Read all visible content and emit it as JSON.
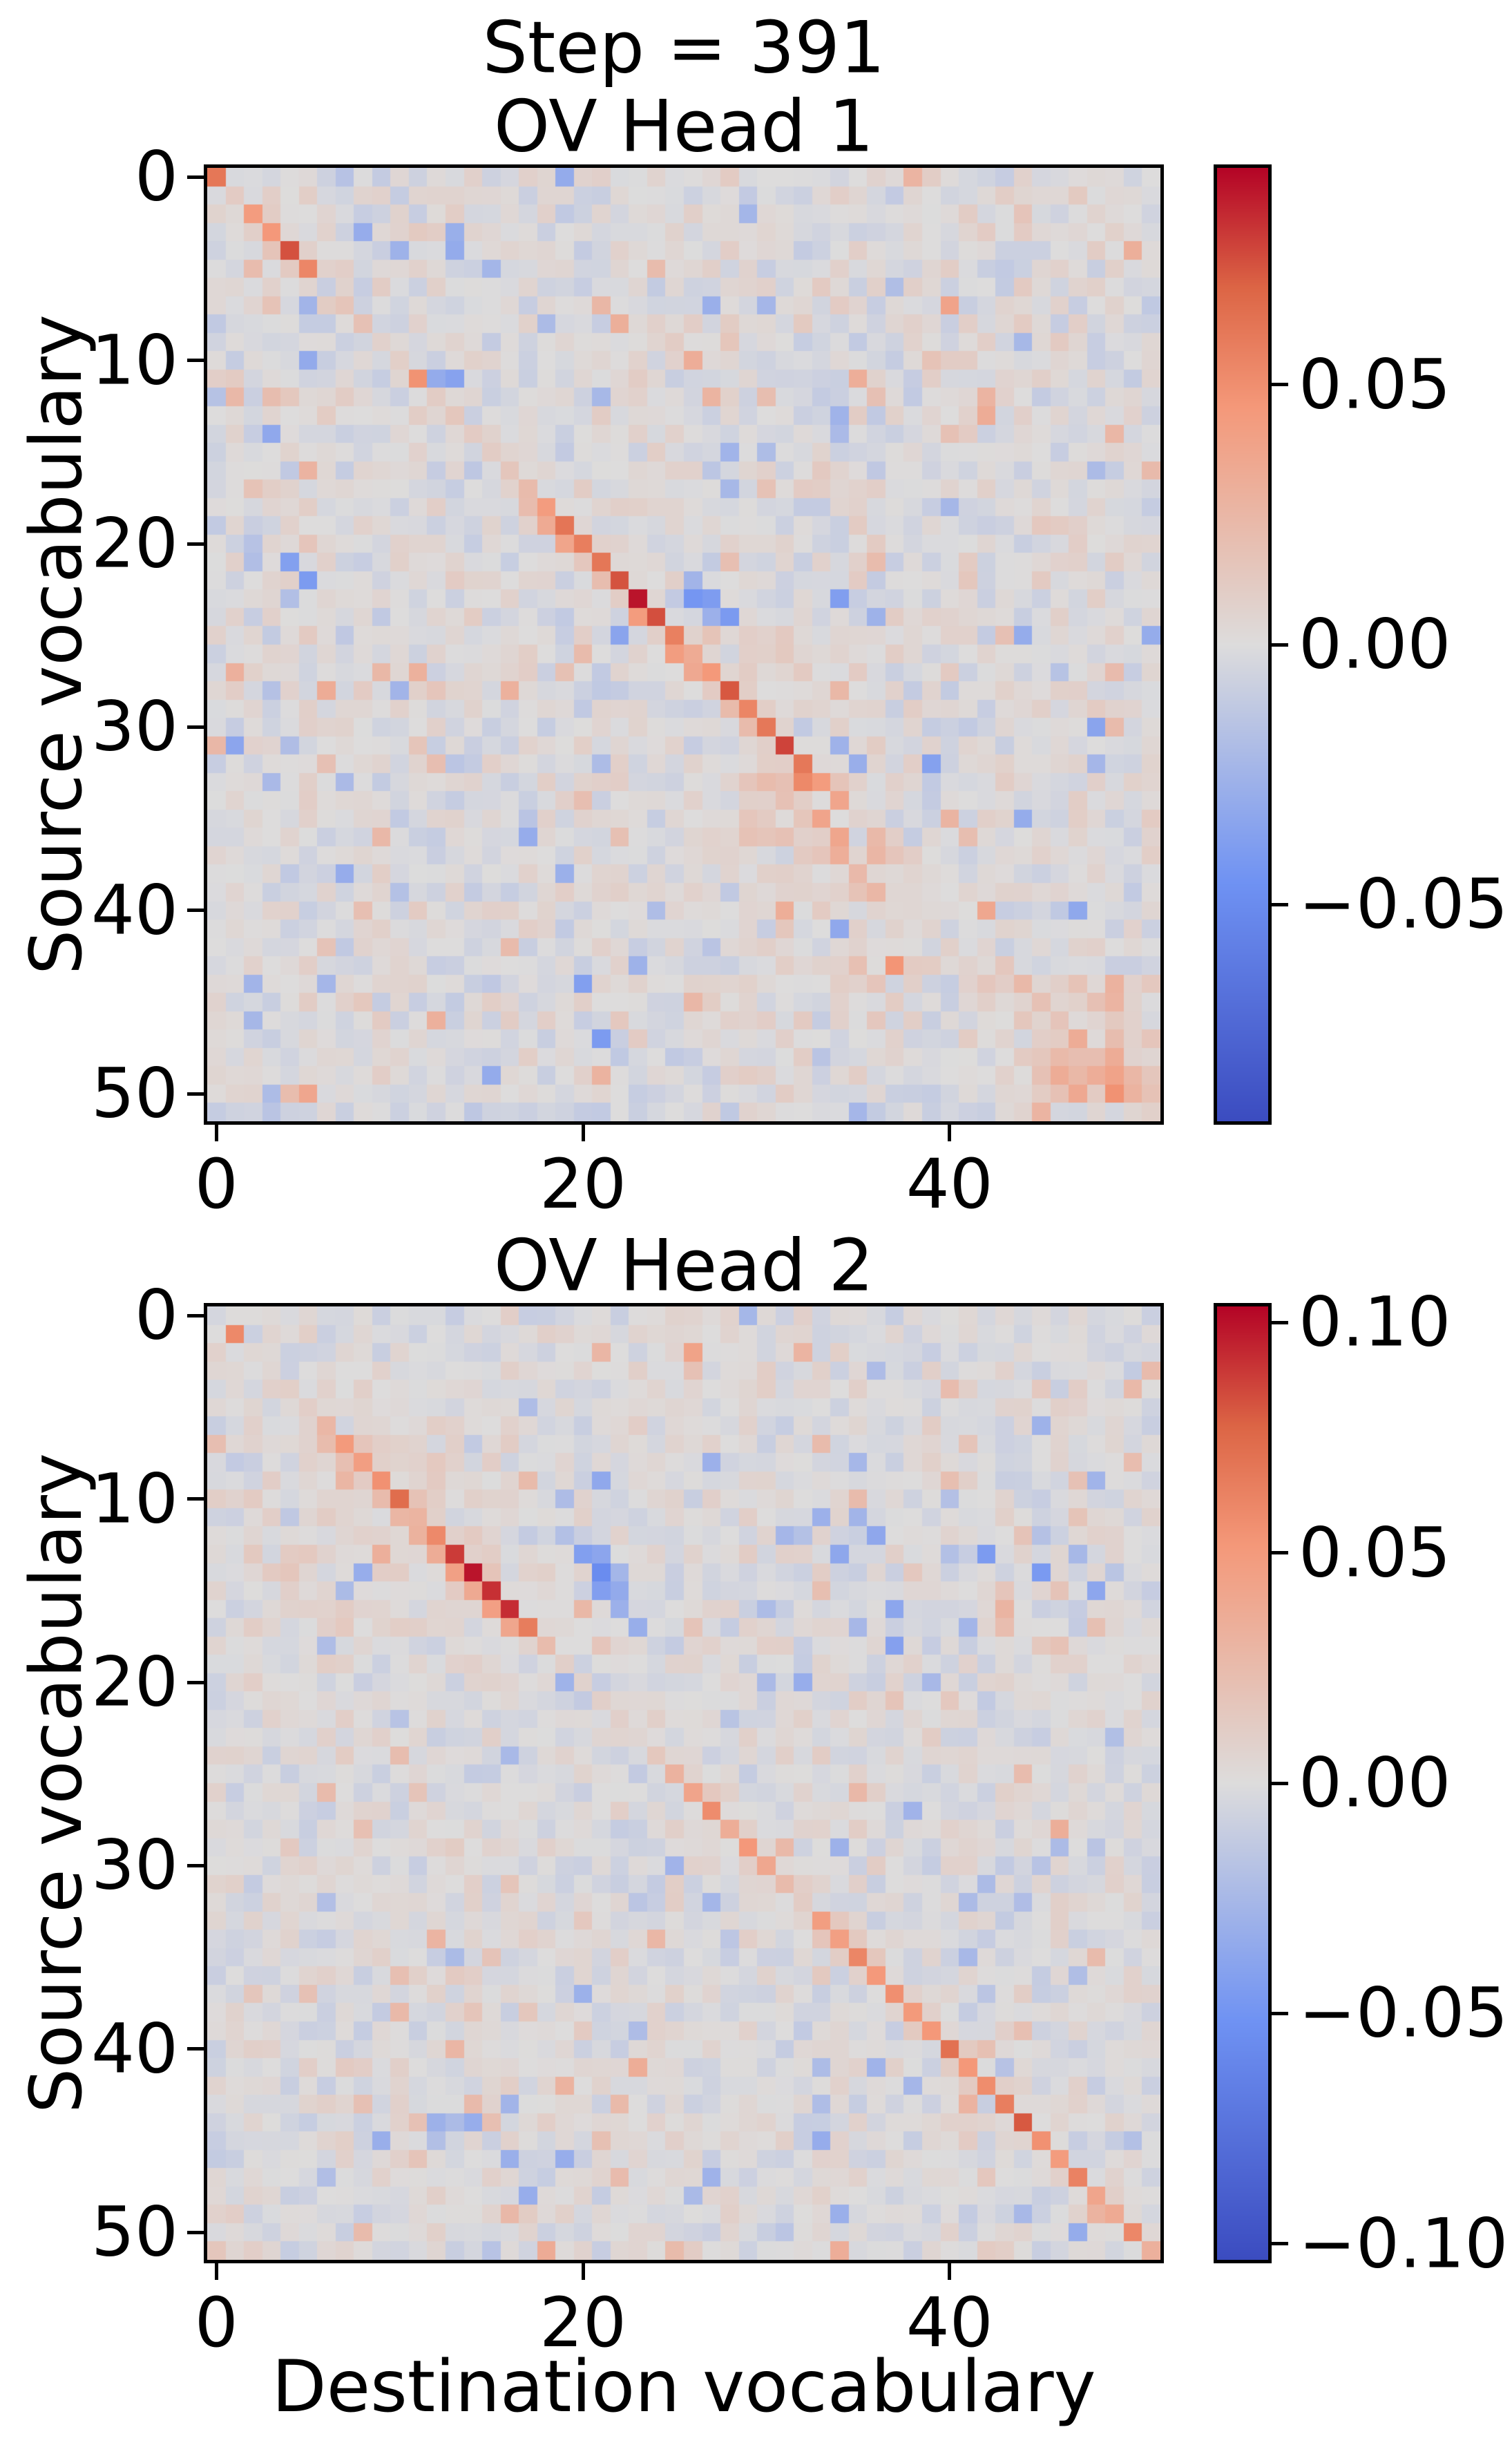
{
  "suptitle": "Step = 391",
  "axis_labels": {
    "y": "Source vocabulary",
    "x": "Destination vocabulary"
  },
  "chart_data": [
    {
      "type": "heatmap",
      "title": "OV Head 1",
      "ylabel": "Source vocabulary",
      "grid_size": 52,
      "x_range": [
        0,
        51
      ],
      "y_range": [
        0,
        51
      ],
      "vmin": -0.0917,
      "vmax": 0.0917,
      "xticks": {
        "values": [
          0,
          20,
          40
        ],
        "labels": [
          "0",
          "20",
          "40"
        ]
      },
      "yticks": {
        "values": [
          0,
          10,
          20,
          30,
          40,
          50
        ],
        "labels": [
          "0",
          "10",
          "20",
          "30",
          "40",
          "50"
        ]
      },
      "colorbar": {
        "tick_values": [
          0.05,
          0.0,
          -0.05
        ],
        "tick_labels": [
          "0.05",
          "0.00",
          "−0.05"
        ]
      },
      "colormap": {
        "name": "coolwarm",
        "stops": [
          [
            0.0,
            "#3B4CC0"
          ],
          [
            0.25,
            "#6F92F3"
          ],
          [
            0.5,
            "#DDDCDC"
          ],
          [
            0.75,
            "#F49879"
          ],
          [
            0.875,
            "#DC6545"
          ],
          [
            1.0,
            "#B40426"
          ]
        ]
      },
      "diagonal": [
        0.06,
        0.004,
        0.046,
        0.052,
        0.068,
        0.046,
        0.024,
        0.018,
        0.016,
        0.01,
        0.01,
        0.052,
        0.012,
        0.01,
        0.012,
        0.01,
        0.012,
        0.016,
        0.044,
        0.054,
        0.06,
        0.06,
        0.066,
        0.09,
        0.088,
        0.048,
        0.03,
        0.034,
        0.06,
        0.048,
        0.056,
        0.072,
        0.066,
        0.04,
        0.022,
        0.016,
        0.012,
        0.01,
        0.008,
        0.008,
        0.006,
        0.006,
        0.008,
        0.01,
        0.01,
        0.012,
        0.012,
        0.014,
        0.016,
        0.018,
        0.018,
        0.006
      ],
      "halos": [
        {
          "i0": 2,
          "i1": 5,
          "left": 0.01,
          "right": 0.004
        },
        {
          "i0": 18,
          "i1": 33,
          "left": 0.014,
          "right": 0.006
        }
      ],
      "patches": [
        {
          "r0": 25,
          "r1": 28,
          "c0": 23,
          "c1": 34,
          "dv": 0.005
        },
        {
          "r0": 33,
          "r1": 36,
          "c0": 29,
          "c1": 34,
          "dv": 0.01
        },
        {
          "r0": 36,
          "r1": 46,
          "c0": 29,
          "c1": 38,
          "dv": 0.005
        },
        {
          "r0": 44,
          "r1": 51,
          "c0": 43,
          "c1": 51,
          "dv": 0.007
        },
        {
          "r0": 47,
          "r1": 50,
          "c0": 45,
          "c1": 51,
          "dv": 0.007
        },
        {
          "r0": 51,
          "r1": 51,
          "c0": 0,
          "c1": 51,
          "dv": -0.004
        }
      ],
      "spots": [
        [
          24,
          23,
          0.028
        ],
        [
          26,
          25,
          0.018
        ],
        [
          27,
          26,
          0.016
        ],
        [
          29,
          28,
          0.014
        ],
        [
          33,
          32,
          0.016
        ],
        [
          19,
          18,
          0.016
        ],
        [
          20,
          19,
          0.014
        ],
        [
          36,
          34,
          0.026
        ],
        [
          37,
          34,
          0.022
        ],
        [
          38,
          35,
          0.024
        ],
        [
          37,
          36,
          0.02
        ],
        [
          35,
          33,
          0.018
        ],
        [
          39,
          36,
          0.018
        ],
        [
          48,
          49,
          0.026
        ],
        [
          49,
          48,
          0.022
        ],
        [
          50,
          49,
          0.03
        ],
        [
          49,
          46,
          0.02
        ],
        [
          50,
          47,
          0.018
        ],
        [
          44,
          47,
          0.018
        ],
        [
          45,
          48,
          0.016
        ],
        [
          2,
          44,
          0.022
        ],
        [
          14,
          40,
          0.018
        ],
        [
          5,
          24,
          0.02
        ],
        [
          26,
          20,
          0.022
        ],
        [
          27,
          19,
          0.018
        ],
        [
          43,
          35,
          0.018
        ],
        [
          31,
          11,
          0.022
        ],
        [
          32,
          12,
          0.018
        ],
        [
          17,
          2,
          0.018
        ],
        [
          12,
          3,
          0.018
        ],
        [
          7,
          21,
          0.018
        ],
        [
          9,
          28,
          0.016
        ],
        [
          22,
          41,
          0.016
        ],
        [
          29,
          45,
          0.016
        ],
        [
          40,
          8,
          0.018
        ],
        [
          42,
          16,
          0.016
        ],
        [
          46,
          22,
          0.016
        ],
        [
          3,
          33,
          0.016
        ],
        [
          6,
          9,
          0.016
        ],
        [
          11,
          12,
          -0.03
        ],
        [
          11,
          13,
          -0.026
        ],
        [
          23,
          26,
          -0.042
        ],
        [
          23,
          27,
          -0.036
        ],
        [
          24,
          27,
          -0.026
        ],
        [
          24,
          28,
          -0.03
        ],
        [
          22,
          26,
          -0.022
        ],
        [
          20,
          2,
          -0.026
        ],
        [
          21,
          4,
          -0.032
        ],
        [
          22,
          5,
          -0.03
        ],
        [
          23,
          4,
          -0.024
        ],
        [
          31,
          1,
          -0.026
        ],
        [
          36,
          17,
          -0.028
        ],
        [
          38,
          19,
          -0.026
        ],
        [
          13,
          34,
          -0.028
        ],
        [
          24,
          36,
          -0.034
        ],
        [
          25,
          44,
          -0.028
        ],
        [
          9,
          44,
          -0.026
        ],
        [
          16,
          48,
          -0.026
        ],
        [
          30,
          48,
          -0.028
        ],
        [
          41,
          30,
          -0.026
        ],
        [
          7,
          30,
          -0.024
        ],
        [
          4,
          13,
          -0.03
        ],
        [
          5,
          15,
          -0.026
        ],
        [
          3,
          8,
          -0.024
        ],
        [
          44,
          2,
          -0.026
        ],
        [
          47,
          21,
          -0.024
        ],
        [
          12,
          21,
          -0.026
        ],
        [
          18,
          40,
          -0.024
        ],
        [
          35,
          44,
          -0.024
        ],
        [
          6,
          37,
          -0.026
        ],
        [
          2,
          29,
          -0.024
        ],
        [
          10,
          5,
          -0.022
        ],
        [
          28,
          10,
          -0.024
        ],
        [
          33,
          3,
          -0.022
        ],
        [
          40,
          24,
          -0.022
        ],
        [
          46,
          33,
          -0.022
        ],
        [
          50,
          3,
          -0.022
        ],
        [
          15,
          28,
          -0.022
        ],
        [
          8,
          18,
          -0.022
        ],
        [
          31,
          34,
          -0.028
        ],
        [
          32,
          35,
          -0.022
        ]
      ],
      "noise": {
        "seed": 42,
        "sigma": 0.013,
        "spike_prob": 0.045,
        "spike_min": 0.01,
        "spike_max": 0.032
      }
    },
    {
      "type": "heatmap",
      "title": "OV Head 2",
      "ylabel": "Source vocabulary",
      "xlabel": "Destination vocabulary",
      "grid_size": 52,
      "x_range": [
        0,
        51
      ],
      "y_range": [
        0,
        51
      ],
      "vmin": -0.1035,
      "vmax": 0.1035,
      "xticks": {
        "values": [
          0,
          20,
          40
        ],
        "labels": [
          "0",
          "20",
          "40"
        ]
      },
      "yticks": {
        "values": [
          0,
          10,
          20,
          30,
          40,
          50
        ],
        "labels": [
          "0",
          "10",
          "20",
          "30",
          "40",
          "50"
        ]
      },
      "colorbar": {
        "tick_values": [
          0.1,
          0.05,
          0.0,
          -0.05,
          -0.1
        ],
        "tick_labels": [
          "0.10",
          "0.05",
          "0.00",
          "−0.05",
          "−0.10"
        ]
      },
      "colormap": {
        "name": "coolwarm",
        "stops": [
          [
            0.0,
            "#3B4CC0"
          ],
          [
            0.25,
            "#6F92F3"
          ],
          [
            0.5,
            "#DDDCDC"
          ],
          [
            0.75,
            "#F49879"
          ],
          [
            0.875,
            "#DC6545"
          ],
          [
            1.0,
            "#B40426"
          ]
        ]
      },
      "diagonal": [
        0.004,
        0.058,
        0.004,
        0.006,
        0.004,
        0.008,
        0.034,
        0.04,
        0.048,
        0.052,
        0.066,
        0.028,
        0.06,
        0.082,
        0.102,
        0.088,
        0.086,
        0.062,
        0.028,
        0.012,
        0.006,
        0.004,
        0.006,
        0.008,
        0.012,
        0.042,
        0.052,
        0.05,
        0.028,
        0.038,
        0.04,
        0.026,
        0.018,
        0.038,
        0.05,
        0.054,
        0.048,
        0.056,
        0.052,
        0.058,
        0.056,
        0.056,
        0.05,
        0.056,
        0.052,
        0.058,
        0.048,
        0.062,
        0.042,
        0.042,
        0.06,
        0.028
      ],
      "halos": [
        {
          "i0": 7,
          "i1": 17,
          "left": 0.016,
          "right": 0.006
        },
        {
          "i0": 26,
          "i1": 51,
          "left": 0.006,
          "right": 0.005
        }
      ],
      "patches": [
        {
          "r0": 6,
          "r1": 17,
          "c0": 2,
          "c1": 16,
          "dv": 0.005
        }
      ],
      "spots": [
        [
          14,
          13,
          0.026
        ],
        [
          15,
          14,
          0.02
        ],
        [
          16,
          15,
          0.018
        ],
        [
          13,
          12,
          0.02
        ],
        [
          17,
          16,
          0.018
        ],
        [
          12,
          11,
          0.016
        ],
        [
          10,
          35,
          0.026
        ],
        [
          12,
          44,
          0.024
        ],
        [
          15,
          43,
          0.024
        ],
        [
          16,
          43,
          0.026
        ],
        [
          17,
          43,
          0.02
        ],
        [
          11,
          47,
          0.022
        ],
        [
          15,
          33,
          0.024
        ],
        [
          15,
          46,
          0.022
        ],
        [
          17,
          48,
          0.022
        ],
        [
          14,
          38,
          0.018
        ],
        [
          9,
          30,
          0.018
        ],
        [
          18,
          45,
          0.016
        ],
        [
          18,
          46,
          0.014
        ],
        [
          34,
          12,
          0.026
        ],
        [
          35,
          15,
          0.024
        ],
        [
          36,
          10,
          0.022
        ],
        [
          38,
          17,
          0.026
        ],
        [
          40,
          13,
          0.024
        ],
        [
          42,
          19,
          0.026
        ],
        [
          43,
          8,
          0.022
        ],
        [
          44,
          15,
          0.024
        ],
        [
          45,
          21,
          0.022
        ],
        [
          41,
          7,
          0.022
        ],
        [
          29,
          13,
          0.02
        ],
        [
          33,
          20,
          0.02
        ],
        [
          46,
          11,
          0.02
        ],
        [
          28,
          8,
          0.018
        ],
        [
          31,
          16,
          0.018
        ],
        [
          26,
          6,
          0.016
        ],
        [
          49,
          17,
          0.018
        ],
        [
          47,
          22,
          0.018
        ],
        [
          37,
          5,
          0.016
        ],
        [
          2,
          26,
          0.018
        ],
        [
          4,
          40,
          0.016
        ],
        [
          7,
          33,
          0.016
        ],
        [
          21,
          40,
          0.016
        ],
        [
          23,
          35,
          0.014
        ],
        [
          19,
          28,
          0.014
        ],
        [
          51,
          25,
          0.02
        ],
        [
          13,
          20,
          -0.04
        ],
        [
          13,
          21,
          -0.034
        ],
        [
          14,
          21,
          -0.03
        ],
        [
          15,
          21,
          -0.044
        ],
        [
          15,
          22,
          -0.034
        ],
        [
          16,
          22,
          -0.03
        ],
        [
          12,
          19,
          -0.024
        ],
        [
          14,
          22,
          -0.028
        ],
        [
          12,
          36,
          -0.038
        ],
        [
          13,
          34,
          -0.036
        ],
        [
          13,
          42,
          -0.034
        ],
        [
          14,
          45,
          -0.038
        ],
        [
          16,
          37,
          -0.034
        ],
        [
          18,
          37,
          -0.04
        ],
        [
          17,
          41,
          -0.03
        ],
        [
          15,
          48,
          -0.03
        ],
        [
          11,
          33,
          -0.028
        ],
        [
          13,
          47,
          -0.026
        ],
        [
          17,
          35,
          -0.028
        ],
        [
          10,
          40,
          -0.026
        ],
        [
          16,
          30,
          -0.028
        ],
        [
          12,
          31,
          -0.026
        ],
        [
          9,
          48,
          -0.028
        ],
        [
          9,
          21,
          -0.026
        ],
        [
          8,
          27,
          -0.024
        ],
        [
          5,
          17,
          -0.024
        ],
        [
          37,
          20,
          -0.028
        ],
        [
          44,
          12,
          -0.026
        ],
        [
          46,
          16,
          -0.028
        ],
        [
          39,
          23,
          -0.026
        ],
        [
          30,
          25,
          -0.024
        ],
        [
          34,
          28,
          -0.022
        ],
        [
          48,
          26,
          -0.024
        ],
        [
          50,
          31,
          -0.022
        ],
        [
          27,
          38,
          -0.022
        ],
        [
          32,
          44,
          -0.024
        ],
        [
          36,
          47,
          -0.022
        ],
        [
          41,
          33,
          -0.024
        ],
        [
          45,
          38,
          -0.022
        ],
        [
          22,
          10,
          -0.022
        ],
        [
          24,
          16,
          -0.022
        ],
        [
          20,
          30,
          -0.022
        ],
        [
          6,
          45,
          -0.022
        ],
        [
          3,
          36,
          -0.022
        ],
        [
          49,
          44,
          -0.02
        ],
        [
          38,
          41,
          -0.02
        ],
        [
          29,
          48,
          -0.022
        ],
        [
          25,
          29,
          -0.02
        ]
      ],
      "noise": {
        "seed": 1337,
        "sigma": 0.013,
        "spike_prob": 0.045,
        "spike_min": 0.01,
        "spike_max": 0.032
      }
    }
  ]
}
